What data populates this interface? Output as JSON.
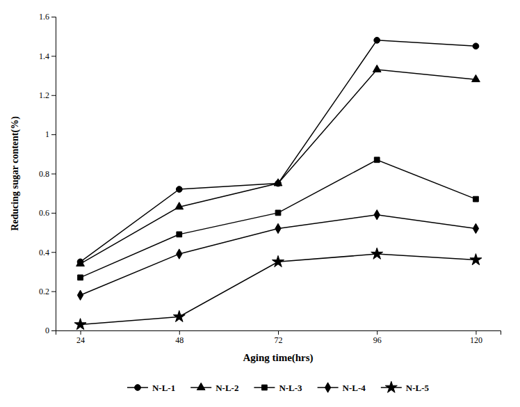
{
  "chart_data": {
    "type": "line",
    "xlabel": "Aging time(hrs)",
    "ylabel": "Reducing sugar content(%)",
    "x": [
      24,
      48,
      72,
      96,
      120
    ],
    "series": [
      {
        "name": "N-L-1",
        "marker": "circle",
        "values": [
          0.35,
          0.72,
          0.75,
          1.48,
          1.45
        ]
      },
      {
        "name": "N-L-2",
        "marker": "triangle",
        "values": [
          0.34,
          0.63,
          0.75,
          1.33,
          1.28
        ]
      },
      {
        "name": "N-L-3",
        "marker": "square",
        "values": [
          0.27,
          0.49,
          0.6,
          0.87,
          0.67
        ]
      },
      {
        "name": "N-L-4",
        "marker": "diamond",
        "values": [
          0.18,
          0.39,
          0.52,
          0.59,
          0.52
        ]
      },
      {
        "name": "N-L-5",
        "marker": "star",
        "values": [
          0.03,
          0.07,
          0.35,
          0.39,
          0.36
        ]
      }
    ],
    "color": "#000000",
    "xlim": [
      18,
      126
    ],
    "xticks": [
      24,
      48,
      72,
      96,
      120
    ],
    "ylim": [
      0,
      1.6
    ],
    "yticks": [
      0,
      0.2,
      0.4,
      0.6,
      0.8,
      1,
      1.2,
      1.4,
      1.6
    ],
    "grid": false,
    "legend": "bottom"
  }
}
